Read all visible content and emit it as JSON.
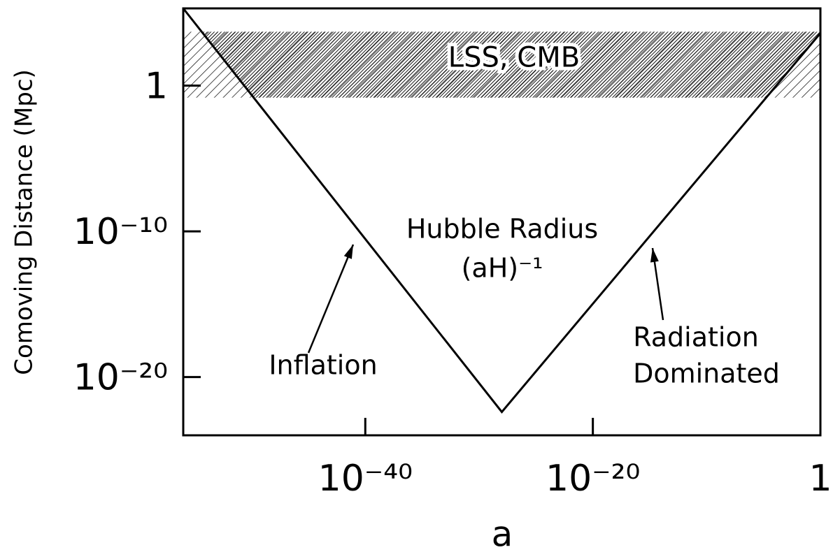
{
  "chart_data": {
    "type": "line",
    "x": [
      1e-56,
      1e-28,
      1
    ],
    "values": [
      200000.0,
      4e-23,
      4000.0
    ],
    "color": "#000000",
    "xscale": "log",
    "yscale": "log",
    "xlim": [
      1e-56,
      1
    ],
    "ylim": [
      1e-24,
      200000.0
    ],
    "xticks": [
      {
        "value": 1e-40,
        "label": "10⁻⁴⁰"
      },
      {
        "value": 1e-20,
        "label": "10⁻²⁰"
      },
      1
    ],
    "yticks": [
      1,
      {
        "value": 1e-10,
        "label": "10⁻¹⁰"
      },
      {
        "value": 1e-20,
        "label": "10⁻²⁰"
      }
    ],
    "xlabel": "a",
    "ylabel": "Comoving Distance (Mpc)",
    "band": {
      "label": "LSS, CMB",
      "range": [
        0.15,
        5000
      ]
    },
    "annotations": [
      "Hubble Radius",
      "(aH)⁻¹",
      "Inflation",
      "Radiation",
      "Dominated"
    ]
  }
}
